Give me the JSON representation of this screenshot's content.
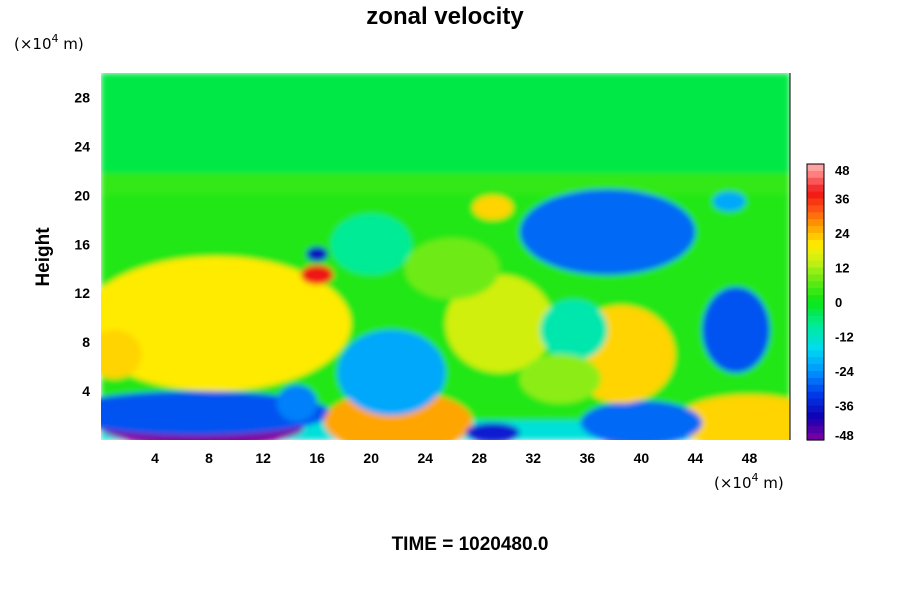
{
  "chart_data": {
    "type": "heatmap",
    "title": "zonal velocity",
    "ylabel": "Height",
    "x_unit_prefix": "(×10",
    "x_unit_exp": "4",
    "x_unit_suffix": " m)",
    "y_unit_prefix": "(×10",
    "y_unit_exp": "4",
    "y_unit_suffix": " m)",
    "xlim": [
      0,
      51
    ],
    "ylim": [
      0,
      30
    ],
    "x_ticks": [
      4,
      8,
      12,
      16,
      20,
      24,
      28,
      32,
      36,
      40,
      44,
      48
    ],
    "y_ticks": [
      4,
      8,
      12,
      16,
      20,
      24,
      28
    ],
    "colorbar": {
      "vmin": -48,
      "vmax": 48,
      "ticks": [
        48,
        36,
        24,
        12,
        0,
        -12,
        -24,
        -36,
        -48
      ]
    },
    "time_label": "TIME = 1020480.0",
    "features": [
      {
        "x": 7.5,
        "y": 9,
        "rx": 7,
        "ry": 3.6,
        "value": 48
      },
      {
        "x": 8.5,
        "y": 9.5,
        "rx": 10,
        "ry": 5.5,
        "value": 20
      },
      {
        "x": 1,
        "y": 7,
        "rx": 2,
        "ry": 2,
        "value": 22
      },
      {
        "x": 7.5,
        "y": 1,
        "rx": 7.5,
        "ry": 1.5,
        "value": -48
      },
      {
        "x": 7,
        "y": 2.2,
        "rx": 10,
        "ry": 1.8,
        "value": -30
      },
      {
        "x": 22,
        "y": 0.5,
        "rx": 4,
        "ry": 1.7,
        "value": 46
      },
      {
        "x": 22,
        "y": 1.5,
        "rx": 5.5,
        "ry": 2.5,
        "value": 26
      },
      {
        "x": 48,
        "y": 0.5,
        "rx": 4,
        "ry": 1.6,
        "value": 44
      },
      {
        "x": 48,
        "y": 1.5,
        "rx": 5.5,
        "ry": 2.2,
        "value": 22
      },
      {
        "x": 39.5,
        "y": 0.4,
        "rx": 2.5,
        "ry": 1.0,
        "value": -48
      },
      {
        "x": 40,
        "y": 1.4,
        "rx": 4.5,
        "ry": 1.8,
        "value": -28
      },
      {
        "x": 29,
        "y": 0.6,
        "rx": 2,
        "ry": 0.8,
        "value": -36
      },
      {
        "x": 21.5,
        "y": 5,
        "rx": 2.5,
        "ry": 2.2,
        "value": -42
      },
      {
        "x": 21.5,
        "y": 5.5,
        "rx": 4,
        "ry": 3.5,
        "value": -22
      },
      {
        "x": 38,
        "y": 18,
        "rx": 4,
        "ry": 2.2,
        "value": -42
      },
      {
        "x": 37.5,
        "y": 17,
        "rx": 6.5,
        "ry": 3.5,
        "value": -28
      },
      {
        "x": 47,
        "y": 9,
        "rx": 2.5,
        "ry": 3.5,
        "value": -30
      },
      {
        "x": 30,
        "y": 9,
        "rx": 2.5,
        "ry": 2.5,
        "value": 32
      },
      {
        "x": 29.5,
        "y": 9.5,
        "rx": 4,
        "ry": 4,
        "value": 15
      },
      {
        "x": 39,
        "y": 5,
        "rx": 1.8,
        "ry": 1.5,
        "value": 38
      },
      {
        "x": 38.5,
        "y": 7,
        "rx": 4,
        "ry": 4,
        "value": 22
      },
      {
        "x": 16,
        "y": 13.5,
        "rx": 1.2,
        "ry": 0.8,
        "value": 38
      },
      {
        "x": 16,
        "y": 15.2,
        "rx": 0.8,
        "ry": 0.6,
        "value": -38
      },
      {
        "x": 29,
        "y": 19,
        "rx": 1.5,
        "ry": 1.0,
        "value": 22
      },
      {
        "x": 14.5,
        "y": 3,
        "rx": 1.5,
        "ry": 1.5,
        "value": -26
      },
      {
        "x": 35,
        "y": 9,
        "rx": 2.5,
        "ry": 2.5,
        "value": -10
      },
      {
        "x": 34,
        "y": 5,
        "rx": 3,
        "ry": 2,
        "value": 10
      },
      {
        "x": 46.5,
        "y": 19.5,
        "rx": 1.2,
        "ry": 0.8,
        "value": -22
      },
      {
        "x": 26,
        "y": 14,
        "rx": 3.5,
        "ry": 2.5,
        "value": 8
      },
      {
        "x": 20,
        "y": 16,
        "rx": 3,
        "ry": 2.5,
        "value": -8
      }
    ]
  }
}
